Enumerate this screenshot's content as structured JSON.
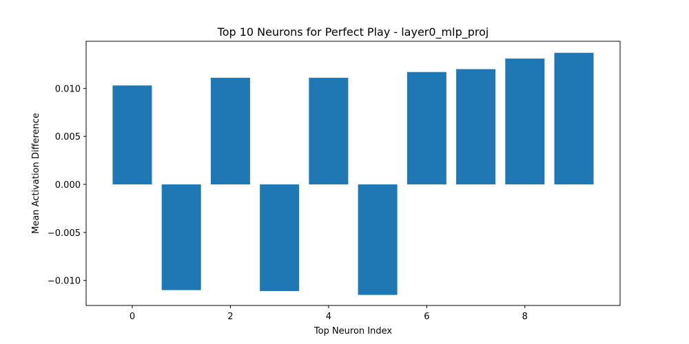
{
  "chart_data": {
    "type": "bar",
    "title": "Top 10 Neurons for Perfect Play - layer0_mlp_proj",
    "xlabel": "Top Neuron Index",
    "ylabel": "Mean Activation Difference",
    "x": [
      0,
      1,
      2,
      3,
      4,
      5,
      6,
      7,
      8,
      9
    ],
    "values": [
      0.0103,
      -0.011,
      0.0111,
      -0.0111,
      0.0111,
      -0.0115,
      0.0117,
      0.012,
      0.0131,
      0.0137
    ],
    "xticks": [
      0,
      2,
      4,
      6,
      8
    ],
    "xtick_labels": [
      "0",
      "2",
      "4",
      "6",
      "8"
    ],
    "yticks": [
      -0.01,
      -0.005,
      0.0,
      0.005,
      0.01
    ],
    "ytick_labels": [
      "−0.010",
      "−0.005",
      "0.000",
      "0.005",
      "0.010"
    ],
    "xlim": [
      -0.94,
      9.94
    ],
    "ylim": [
      -0.0126,
      0.0149
    ],
    "bar_color": "#1f77b4",
    "grid": false,
    "legend": "none"
  }
}
